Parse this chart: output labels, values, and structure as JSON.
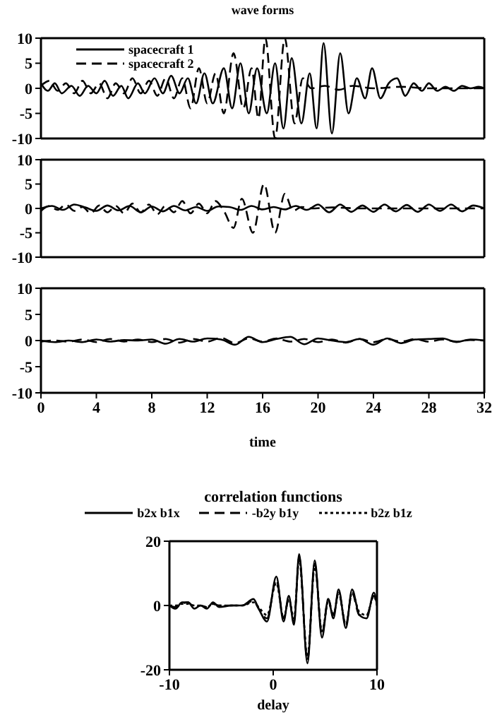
{
  "chart_data": [
    {
      "type": "line",
      "title": "wave forms",
      "xlim": [
        0,
        32
      ],
      "xticks": [
        0,
        4,
        8,
        12,
        16,
        20,
        24,
        28,
        32
      ],
      "ylim": [
        -10,
        10
      ],
      "yticks": [
        10,
        5,
        0,
        -5,
        -10
      ],
      "tick_labels": "y",
      "legend": "top left",
      "series": [
        {
          "name": "spacecraft 1",
          "color": "#000000",
          "line_style": "solid",
          "x": [
            0,
            0.5,
            1,
            1.5,
            2.2,
            2.8,
            3.4,
            4,
            4.6,
            5.2,
            5.8,
            6.3,
            7,
            7.5,
            8.2,
            8.8,
            9.4,
            10,
            10.6,
            11.2,
            11.8,
            12.4,
            13.2,
            13.8,
            14.4,
            15,
            15.6,
            16.3,
            16.9,
            17.5,
            18.1,
            18.8,
            19.4,
            19.9,
            20.4,
            21,
            21.6,
            22.2,
            22.8,
            23.4,
            23.9,
            24.5,
            25.1,
            25.7,
            26.3,
            26.9,
            27.5,
            28,
            28.6,
            29.2,
            29.8,
            30.4,
            31,
            31.6,
            32
          ],
          "values": [
            1,
            -0.5,
            1,
            -1,
            0.5,
            -1.5,
            0.5,
            -1,
            1.5,
            -1.5,
            0.5,
            -2,
            1,
            -1,
            2,
            -1,
            2.5,
            -1,
            2,
            -3,
            3,
            -3,
            4,
            -4,
            5,
            -5,
            4,
            -5,
            5,
            -8,
            6,
            -7,
            3,
            -8,
            9,
            -9,
            7,
            -5,
            2,
            -2,
            4,
            -2,
            1,
            2,
            -1.5,
            1,
            -0.5,
            1,
            -0.5,
            0.3,
            -0.5,
            0.5,
            0,
            0.3,
            0
          ]
        },
        {
          "name": "spacecraft 2",
          "color": "#000000",
          "line_style": "dashed",
          "x": [
            0,
            0.6,
            1.2,
            1.8,
            2.4,
            3,
            3.6,
            4.2,
            4.8,
            5.4,
            6,
            6.6,
            7.2,
            7.8,
            8.4,
            9,
            9.6,
            10.2,
            10.8,
            11.4,
            12,
            12.6,
            13.2,
            13.9,
            14.6,
            15.2,
            15.7,
            16.2,
            16.9,
            17.6,
            18.3,
            18.9,
            19.5,
            20.5,
            21.5,
            22.5,
            24,
            26,
            28,
            32
          ],
          "values": [
            0.5,
            1.5,
            -0.5,
            1,
            -1,
            1.5,
            -1,
            1,
            -2,
            1,
            -1,
            2,
            -1,
            1.5,
            -1.5,
            2,
            -2,
            2,
            -4,
            4,
            -3,
            3,
            -5,
            7,
            -4,
            4,
            -6,
            10,
            -10,
            10,
            -7,
            2,
            0,
            0.5,
            -0.3,
            0.5,
            0,
            0.3,
            0,
            0
          ]
        }
      ]
    },
    {
      "type": "line",
      "xlim": [
        0,
        32
      ],
      "xticks": [
        0,
        4,
        8,
        12,
        16,
        20,
        24,
        28,
        32
      ],
      "ylim": [
        -10,
        10
      ],
      "yticks": [
        10,
        5,
        0,
        -5,
        -10
      ],
      "tick_labels": "y",
      "series": [
        {
          "color": "#000000",
          "line_style": "solid",
          "x": [
            0,
            0.8,
            1.6,
            2.4,
            3.2,
            4,
            4.8,
            5.6,
            6.4,
            7.2,
            8,
            8.8,
            9.6,
            10.4,
            11.2,
            12,
            12.8,
            13.6,
            14.4,
            15.2,
            16,
            16.8,
            17.6,
            18.4,
            19.2,
            20,
            20.8,
            21.6,
            22.4,
            23.2,
            24,
            24.8,
            25.6,
            26.4,
            27.2,
            28,
            28.8,
            29.6,
            30.4,
            31.2,
            32
          ],
          "values": [
            0,
            0.5,
            -0.3,
            0.8,
            0.2,
            -0.5,
            0.6,
            -0.4,
            0.5,
            -0.8,
            0.4,
            -0.6,
            0.5,
            -0.4,
            0.3,
            -0.5,
            0.4,
            0.3,
            -0.3,
            0.5,
            -0.2,
            0.3,
            -0.2,
            0.5,
            -0.3,
            0.8,
            -0.8,
            0.8,
            -0.7,
            0.6,
            -0.7,
            0.8,
            -0.6,
            0.7,
            -0.7,
            0.8,
            -0.5,
            0.8,
            -0.6,
            0.6,
            0
          ]
        },
        {
          "color": "#000000",
          "line_style": "dashed",
          "x": [
            0,
            0.6,
            1.2,
            1.8,
            2.4,
            3,
            3.6,
            4.2,
            4.8,
            5.4,
            6,
            6.6,
            7.2,
            7.8,
            8.4,
            9,
            9.6,
            10.2,
            10.8,
            11.4,
            12,
            12.6,
            13.2,
            13.9,
            14.5,
            15.3,
            16.1,
            16.9,
            17.6,
            18.2,
            18.8,
            19.5,
            21,
            23,
            26,
            29,
            32
          ],
          "values": [
            -0.5,
            0.5,
            -0.3,
            0.8,
            -0.5,
            0.3,
            -1,
            0.6,
            -0.8,
            0.5,
            -1,
            1,
            -0.8,
            0.8,
            -1.2,
            0.6,
            -0.8,
            1.5,
            -1,
            1,
            -1,
            1.5,
            -0.5,
            -4,
            2,
            -5,
            5,
            -5,
            3,
            -0.5,
            0.3,
            0,
            0.2,
            0,
            0,
            0,
            0
          ]
        }
      ]
    },
    {
      "type": "line",
      "xlabel": "time",
      "xlim": [
        0,
        32
      ],
      "xticks": [
        0,
        4,
        8,
        12,
        16,
        20,
        24,
        28,
        32
      ],
      "ylim": [
        -10,
        10
      ],
      "yticks": [
        10,
        5,
        0,
        -5,
        -10
      ],
      "x": [
        0,
        1,
        2,
        3,
        4,
        5,
        6,
        7,
        8,
        9,
        10,
        11,
        12,
        13,
        14,
        15,
        16,
        17,
        18,
        19,
        20,
        21,
        22,
        23,
        24,
        25,
        26,
        27,
        28,
        29,
        30,
        31,
        32
      ],
      "series": [
        {
          "color": "#000000",
          "line_style": "solid",
          "values": [
            0,
            -0.3,
            0,
            -0.3,
            0.2,
            -0.2,
            0.1,
            0,
            0.2,
            -0.6,
            0.3,
            -0.2,
            0.4,
            0.2,
            -0.8,
            0.7,
            -0.3,
            0.3,
            0.7,
            -0.7,
            0.4,
            0,
            -0.3,
            0.3,
            -0.8,
            0.4,
            -0.5,
            0.2,
            0.3,
            0.4,
            -0.3,
            0.2,
            0
          ]
        },
        {
          "color": "#000000",
          "line_style": "dashed",
          "values": [
            -0.2,
            0,
            -0.2,
            0.2,
            -0.3,
            0.3,
            -0.2,
            0.2,
            -0.3,
            0.3,
            -0.4,
            0.3,
            -0.2,
            0.5,
            -0.5,
            0.4,
            -0.2,
            0.4,
            -0.2,
            0.3,
            -0.3,
            0.2,
            -0.4,
            0.3,
            -0.3,
            0.3,
            -0.2,
            0.3,
            -0.2,
            0.2,
            -0.2,
            0.1,
            0
          ]
        }
      ]
    },
    {
      "type": "line",
      "title": "correlation functions",
      "xlabel": "delay",
      "xlim": [
        -10,
        10
      ],
      "xticks": [
        -10,
        0,
        10
      ],
      "ylim": [
        -20,
        20
      ],
      "yticks": [
        20,
        0,
        -20
      ],
      "legend": "top",
      "x": [
        -10,
        -9.4,
        -8.8,
        -8.2,
        -7.6,
        -7,
        -6.4,
        -5.8,
        -5.2,
        -4,
        -3,
        -1.9,
        -1.4,
        -0.6,
        0.3,
        1,
        1.5,
        2,
        2.5,
        3.3,
        4,
        4.7,
        5.3,
        5.8,
        6.3,
        7,
        7.6,
        8.3,
        9,
        9.7,
        10
      ],
      "series": [
        {
          "name": "b2x b1x",
          "color": "#000000",
          "line_style": "solid",
          "values": [
            0,
            -1,
            1,
            1,
            -1,
            0,
            -1,
            1,
            -0.5,
            0,
            0,
            2,
            -1,
            -5,
            9,
            -5,
            3,
            -6,
            16,
            -18,
            14,
            -10,
            2,
            -4,
            5,
            -7,
            5,
            -3,
            -4,
            4,
            0
          ]
        },
        {
          "name": "-b2y b1y",
          "color": "#000000",
          "line_style": "dashed",
          "values": [
            0,
            -0.5,
            0.5,
            1,
            -0.5,
            0,
            -0.5,
            0.5,
            0,
            0,
            0,
            1.5,
            -1,
            -4,
            8,
            -4,
            2,
            -5,
            15,
            -17,
            13,
            -9,
            2,
            -3,
            4,
            -6,
            4,
            -3,
            -3,
            3,
            0
          ]
        },
        {
          "name": "b2z b1z",
          "color": "#000000",
          "line_style": "dotted",
          "values": [
            0,
            0,
            0.5,
            0.5,
            0,
            0,
            -0.5,
            0.5,
            0,
            0,
            0,
            1,
            -0.5,
            -3,
            7,
            -4,
            2,
            -4,
            14,
            -16,
            12,
            -8,
            1,
            -3,
            4,
            -6,
            4,
            -2,
            -3,
            3,
            0
          ]
        }
      ]
    }
  ]
}
